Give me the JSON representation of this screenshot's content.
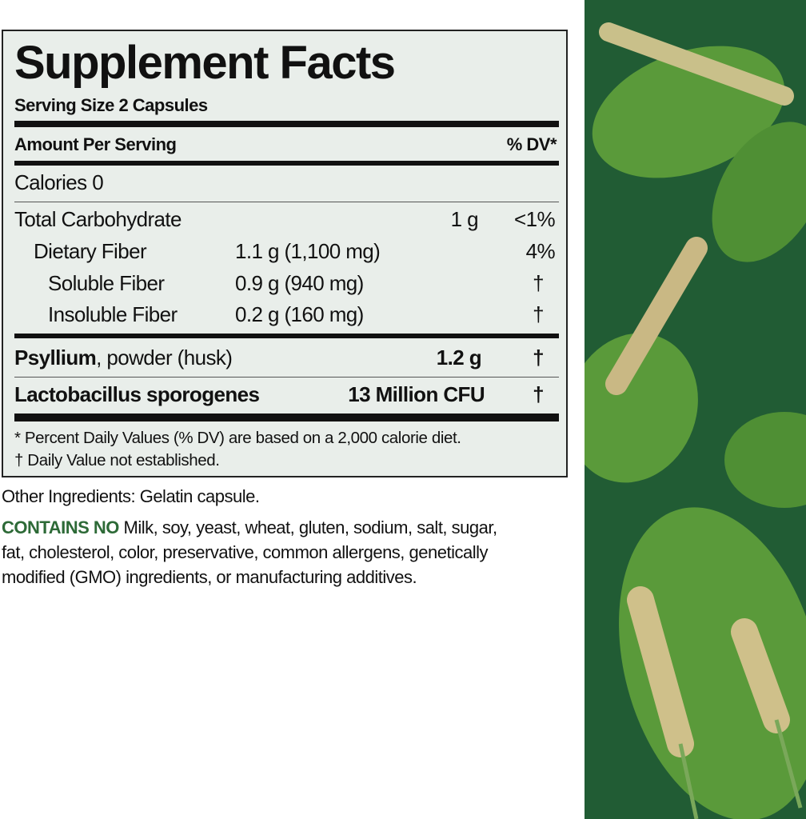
{
  "panel": {
    "title": "Supplement Facts",
    "serving_size": "Serving Size 2 Capsules",
    "amount_header": "Amount Per Serving",
    "dv_header": "% DV*",
    "calories": "Calories  0",
    "rows": [
      {
        "name": "Total Carbohydrate",
        "amount": "1 g",
        "dv": "<1%"
      },
      {
        "name": "Dietary Fiber",
        "amount": "1.1 g (1,100 mg)",
        "dv": "4%"
      },
      {
        "name": "Soluble Fiber",
        "amount": "0.9 g (940 mg)",
        "dv": "†"
      },
      {
        "name": "Insoluble Fiber",
        "amount": "0.2 g (160 mg)",
        "dv": "†"
      }
    ],
    "psyllium": {
      "name": "Psyllium",
      "desc": ", powder (husk)",
      "amount": "1.2 g",
      "dv": "†"
    },
    "lacto": {
      "name": "Lactobacillus sporogenes",
      "amount": "13 Million CFU",
      "dv": "†"
    },
    "footnote1": "* Percent Daily Values (% DV) are based on a 2,000 calorie diet.",
    "footnote2": "† Daily Value not established."
  },
  "other_ingredients": "Other Ingredients: Gelatin capsule.",
  "contains_no": {
    "label": "CONTAINS NO",
    "line1": " Milk, soy, yeast, wheat, gluten, sodium, salt, sugar,",
    "line2": "fat, cholesterol, color, preservative, common allergens, genetically",
    "line3": "modified (GMO) ingredients, or manufacturing additives."
  },
  "colors": {
    "panel_bg": "#e9eeea",
    "accent_green": "#2d6a37",
    "art_bg": "#215c34"
  }
}
